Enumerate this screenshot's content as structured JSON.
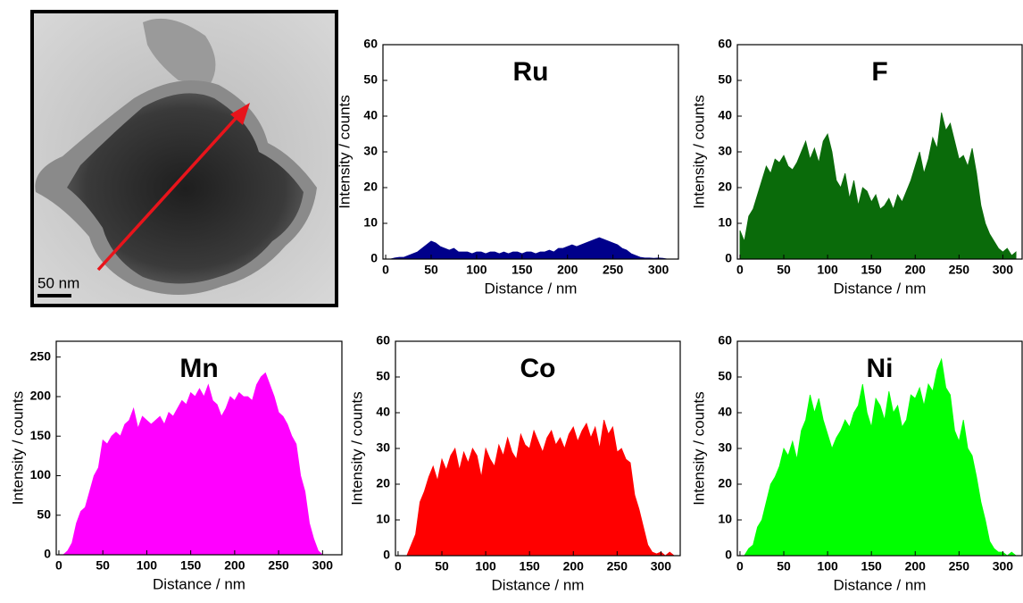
{
  "micrograph": {
    "scale_bar_label": "50 nm"
  },
  "chart_data": [
    {
      "type": "area",
      "title": "Ru",
      "xlabel": "Distance / nm",
      "ylabel": "Intensity / counts",
      "color": "#00008b",
      "xlim": [
        -3,
        322
      ],
      "ylim": [
        0,
        60
      ],
      "xticks": [
        0,
        50,
        100,
        150,
        200,
        250,
        300
      ],
      "yticks": [
        0,
        10,
        20,
        30,
        40,
        50,
        60
      ],
      "x": [
        0,
        5,
        10,
        15,
        20,
        25,
        30,
        35,
        40,
        45,
        50,
        55,
        60,
        65,
        70,
        75,
        80,
        85,
        90,
        95,
        100,
        105,
        110,
        115,
        120,
        125,
        130,
        135,
        140,
        145,
        150,
        155,
        160,
        165,
        170,
        175,
        180,
        185,
        190,
        195,
        200,
        205,
        210,
        215,
        220,
        225,
        230,
        235,
        240,
        245,
        250,
        255,
        260,
        265,
        270,
        275,
        280,
        285,
        290,
        295,
        300,
        305,
        310,
        315
      ],
      "values": [
        0,
        0,
        0.3,
        0.5,
        0.5,
        1,
        1.5,
        2,
        3,
        4,
        5,
        4.5,
        3.5,
        3,
        2.5,
        3,
        2,
        2,
        2,
        1.5,
        2,
        2,
        1.5,
        2,
        2,
        1.5,
        2,
        1.5,
        2,
        2,
        1.5,
        2,
        2,
        1.5,
        2,
        2,
        2.5,
        2,
        3,
        3,
        3.5,
        4,
        3.5,
        4,
        4.5,
        5,
        5.5,
        6,
        5.5,
        5,
        4.5,
        4,
        3,
        2.5,
        1.5,
        1,
        0.5,
        0.3,
        0.3,
        0.2,
        0.3,
        0.2,
        0,
        0
      ]
    },
    {
      "type": "area",
      "title": "F",
      "xlabel": "Distance / nm",
      "ylabel": "Intensity / counts",
      "color": "#0a6b0a",
      "xlim": [
        -3,
        322
      ],
      "ylim": [
        0,
        60
      ],
      "xticks": [
        0,
        50,
        100,
        150,
        200,
        250,
        300
      ],
      "yticks": [
        0,
        10,
        20,
        30,
        40,
        50,
        60
      ],
      "x": [
        0,
        5,
        10,
        15,
        20,
        25,
        30,
        35,
        40,
        45,
        50,
        55,
        60,
        65,
        70,
        75,
        80,
        85,
        90,
        95,
        100,
        105,
        110,
        115,
        120,
        125,
        130,
        135,
        140,
        145,
        150,
        155,
        160,
        165,
        170,
        175,
        180,
        185,
        190,
        195,
        200,
        205,
        210,
        215,
        220,
        225,
        230,
        235,
        240,
        245,
        250,
        255,
        260,
        265,
        270,
        275,
        280,
        285,
        290,
        295,
        300,
        305,
        310,
        315
      ],
      "values": [
        8,
        5,
        12,
        14,
        18,
        22,
        26,
        24,
        28,
        27,
        29,
        26,
        25,
        27,
        30,
        33,
        28,
        31,
        27,
        33,
        35,
        30,
        22,
        20,
        24,
        17,
        22,
        15,
        20,
        19,
        16,
        18,
        14,
        15,
        17,
        14,
        18,
        16,
        19,
        22,
        26,
        30,
        24,
        28,
        34,
        31,
        41,
        36,
        38,
        33,
        28,
        29,
        26,
        31,
        24,
        15,
        10,
        7,
        5,
        3,
        2,
        3,
        1,
        2
      ]
    },
    {
      "type": "area",
      "title": "Mn",
      "xlabel": "Distance / nm",
      "ylabel": "Intensity / counts",
      "color": "#ff00ff",
      "xlim": [
        -3,
        322
      ],
      "ylim": [
        0,
        270
      ],
      "xticks": [
        0,
        50,
        100,
        150,
        200,
        250,
        300
      ],
      "yticks": [
        0,
        50,
        100,
        150,
        200,
        250
      ],
      "x": [
        0,
        5,
        10,
        15,
        20,
        25,
        30,
        35,
        40,
        45,
        50,
        55,
        60,
        65,
        70,
        75,
        80,
        85,
        90,
        95,
        100,
        105,
        110,
        115,
        120,
        125,
        130,
        135,
        140,
        145,
        150,
        155,
        160,
        165,
        170,
        175,
        180,
        185,
        190,
        195,
        200,
        205,
        210,
        215,
        220,
        225,
        230,
        235,
        240,
        245,
        250,
        255,
        260,
        265,
        270,
        275,
        280,
        285,
        290,
        295,
        300,
        305,
        310,
        315
      ],
      "values": [
        0,
        0,
        5,
        15,
        40,
        55,
        60,
        80,
        100,
        110,
        145,
        140,
        150,
        155,
        150,
        165,
        170,
        185,
        160,
        175,
        170,
        165,
        170,
        175,
        165,
        180,
        175,
        185,
        195,
        190,
        205,
        200,
        210,
        200,
        215,
        195,
        190,
        175,
        185,
        200,
        195,
        205,
        200,
        200,
        195,
        215,
        225,
        230,
        215,
        200,
        180,
        175,
        165,
        150,
        140,
        100,
        80,
        40,
        20,
        5,
        0,
        0,
        0,
        0
      ]
    },
    {
      "type": "area",
      "title": "Co",
      "xlabel": "Distance / nm",
      "ylabel": "Intensity / counts",
      "color": "#ff0000",
      "xlim": [
        -3,
        322
      ],
      "ylim": [
        0,
        60
      ],
      "xticks": [
        0,
        50,
        100,
        150,
        200,
        250,
        300
      ],
      "yticks": [
        0,
        10,
        20,
        30,
        40,
        50,
        60
      ],
      "x": [
        0,
        5,
        10,
        15,
        20,
        25,
        30,
        35,
        40,
        45,
        50,
        55,
        60,
        65,
        70,
        75,
        80,
        85,
        90,
        95,
        100,
        105,
        110,
        115,
        120,
        125,
        130,
        135,
        140,
        145,
        150,
        155,
        160,
        165,
        170,
        175,
        180,
        185,
        190,
        195,
        200,
        205,
        210,
        215,
        220,
        225,
        230,
        235,
        240,
        245,
        250,
        255,
        260,
        265,
        270,
        275,
        280,
        285,
        290,
        295,
        300,
        305,
        310,
        315
      ],
      "values": [
        0,
        0,
        0,
        3,
        6,
        15,
        18,
        22,
        25,
        21,
        27,
        24,
        28,
        30,
        24,
        29,
        26,
        30,
        28,
        22,
        30,
        27,
        25,
        31,
        28,
        33,
        29,
        27,
        34,
        31,
        30,
        35,
        32,
        29,
        33,
        35,
        31,
        33,
        30,
        34,
        36,
        32,
        35,
        37,
        33,
        36,
        30,
        38,
        34,
        36,
        29,
        30,
        27,
        26,
        17,
        13,
        8,
        3,
        1,
        0.5,
        1,
        0,
        1,
        0
      ]
    },
    {
      "type": "area",
      "title": "Ni",
      "xlabel": "Distance / nm",
      "ylabel": "Intensity / counts",
      "color": "#00ff00",
      "xlim": [
        -3,
        322
      ],
      "ylim": [
        0,
        60
      ],
      "xticks": [
        0,
        50,
        100,
        150,
        200,
        250,
        300
      ],
      "yticks": [
        0,
        10,
        20,
        30,
        40,
        50,
        60
      ],
      "x": [
        0,
        5,
        10,
        15,
        20,
        25,
        30,
        35,
        40,
        45,
        50,
        55,
        60,
        65,
        70,
        75,
        80,
        85,
        90,
        95,
        100,
        105,
        110,
        115,
        120,
        125,
        130,
        135,
        140,
        145,
        150,
        155,
        160,
        165,
        170,
        175,
        180,
        185,
        190,
        195,
        200,
        205,
        210,
        215,
        220,
        225,
        230,
        235,
        240,
        245,
        250,
        255,
        260,
        265,
        270,
        275,
        280,
        285,
        290,
        295,
        300,
        305,
        310,
        315
      ],
      "values": [
        0,
        0,
        2,
        3,
        8,
        10,
        15,
        20,
        22,
        25,
        30,
        28,
        32,
        27,
        35,
        38,
        45,
        40,
        44,
        38,
        34,
        30,
        33,
        35,
        38,
        36,
        40,
        42,
        48,
        40,
        36,
        44,
        42,
        38,
        46,
        40,
        42,
        36,
        38,
        45,
        44,
        47,
        42,
        48,
        46,
        52,
        55,
        47,
        45,
        35,
        32,
        38,
        30,
        28,
        22,
        15,
        10,
        4,
        2,
        1,
        1,
        0,
        1,
        0
      ]
    }
  ]
}
